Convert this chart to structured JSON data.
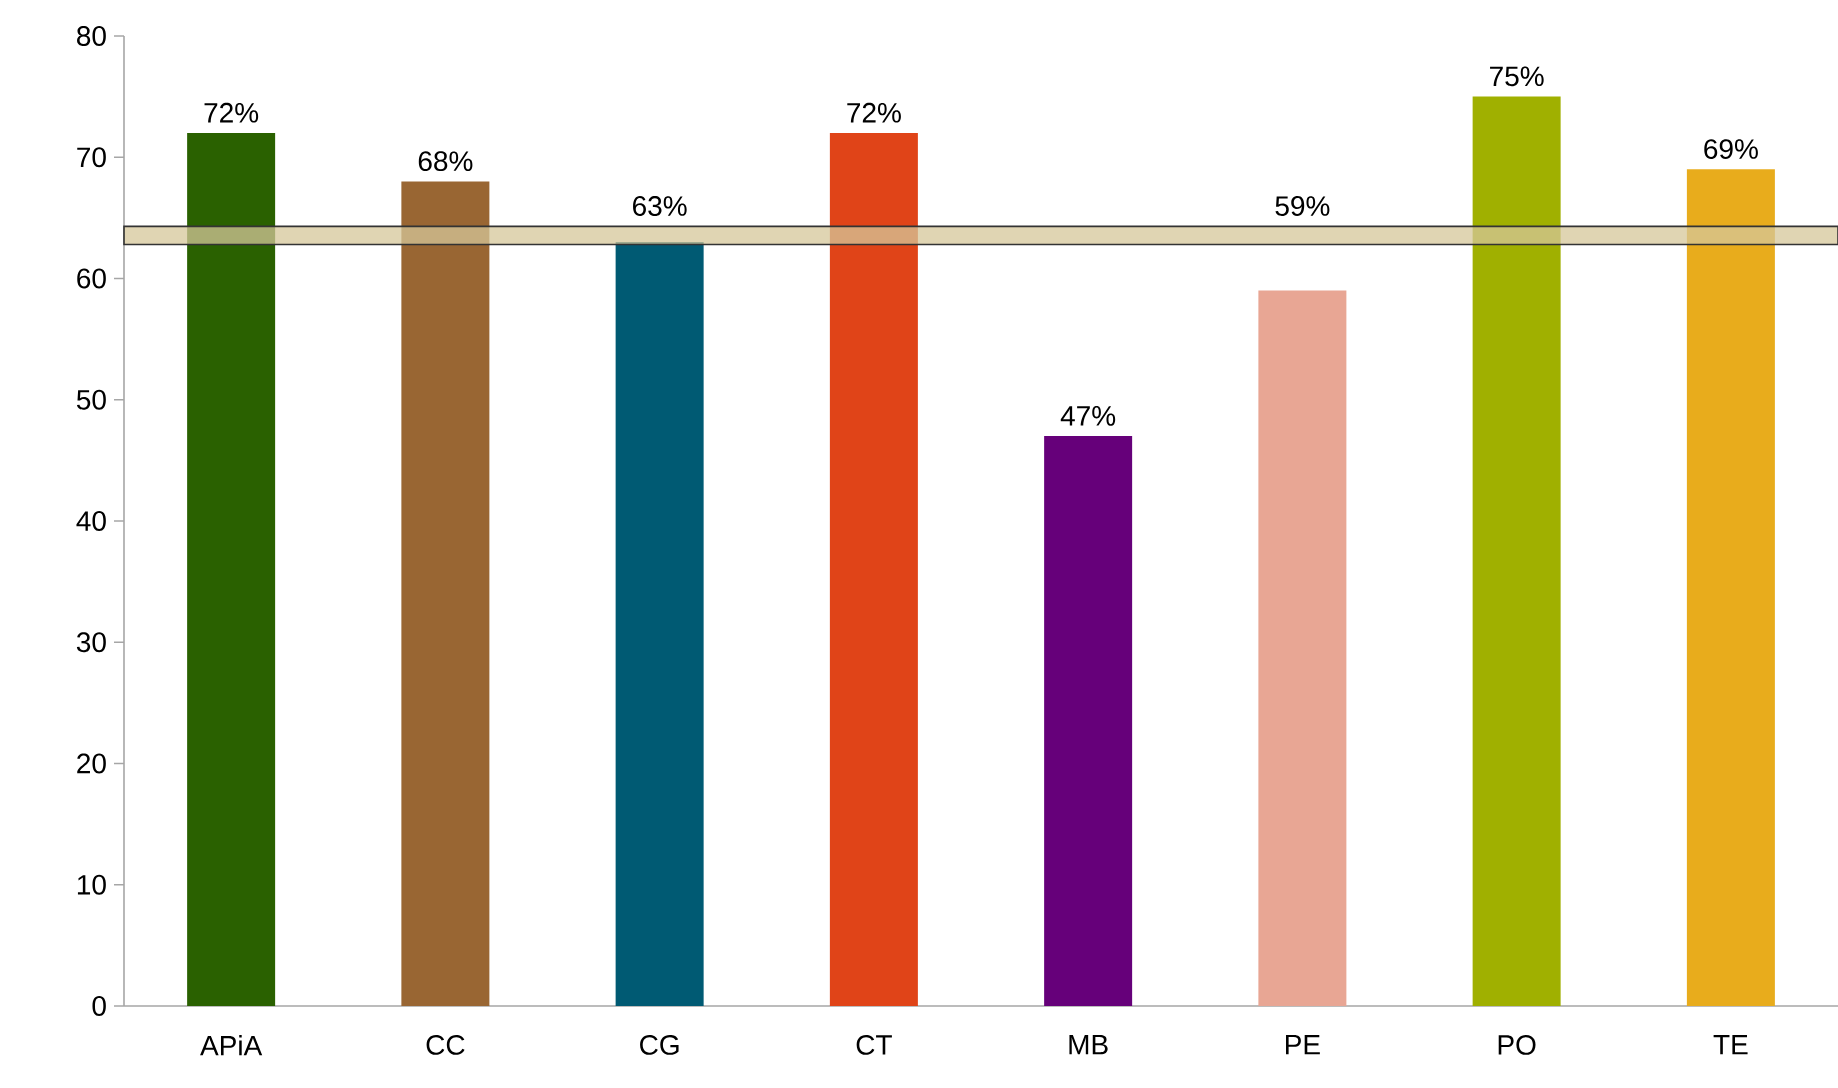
{
  "chart_data": {
    "type": "bar",
    "categories": [
      "APiA",
      "CC",
      "CG",
      "CT",
      "MB",
      "PE",
      "PO",
      "TE"
    ],
    "values": [
      72,
      68,
      63,
      72,
      47,
      59,
      75,
      69
    ],
    "value_labels": [
      "72%",
      "68%",
      "63%",
      "72%",
      "47%",
      "59%",
      "75%",
      "69%"
    ],
    "colors": [
      "#2a6100",
      "#996633",
      "#005a73",
      "#e04418",
      "#66007a",
      "#e8a694",
      "#a0b000",
      "#e8ac1c"
    ],
    "ylim": [
      0,
      80
    ],
    "yticks": [
      0,
      10,
      20,
      30,
      40,
      50,
      60,
      70,
      80
    ],
    "bands": [
      {
        "axis": "y",
        "from": 62.8,
        "to": 64.3,
        "color": "#d6c79a"
      }
    ],
    "grid": false
  }
}
